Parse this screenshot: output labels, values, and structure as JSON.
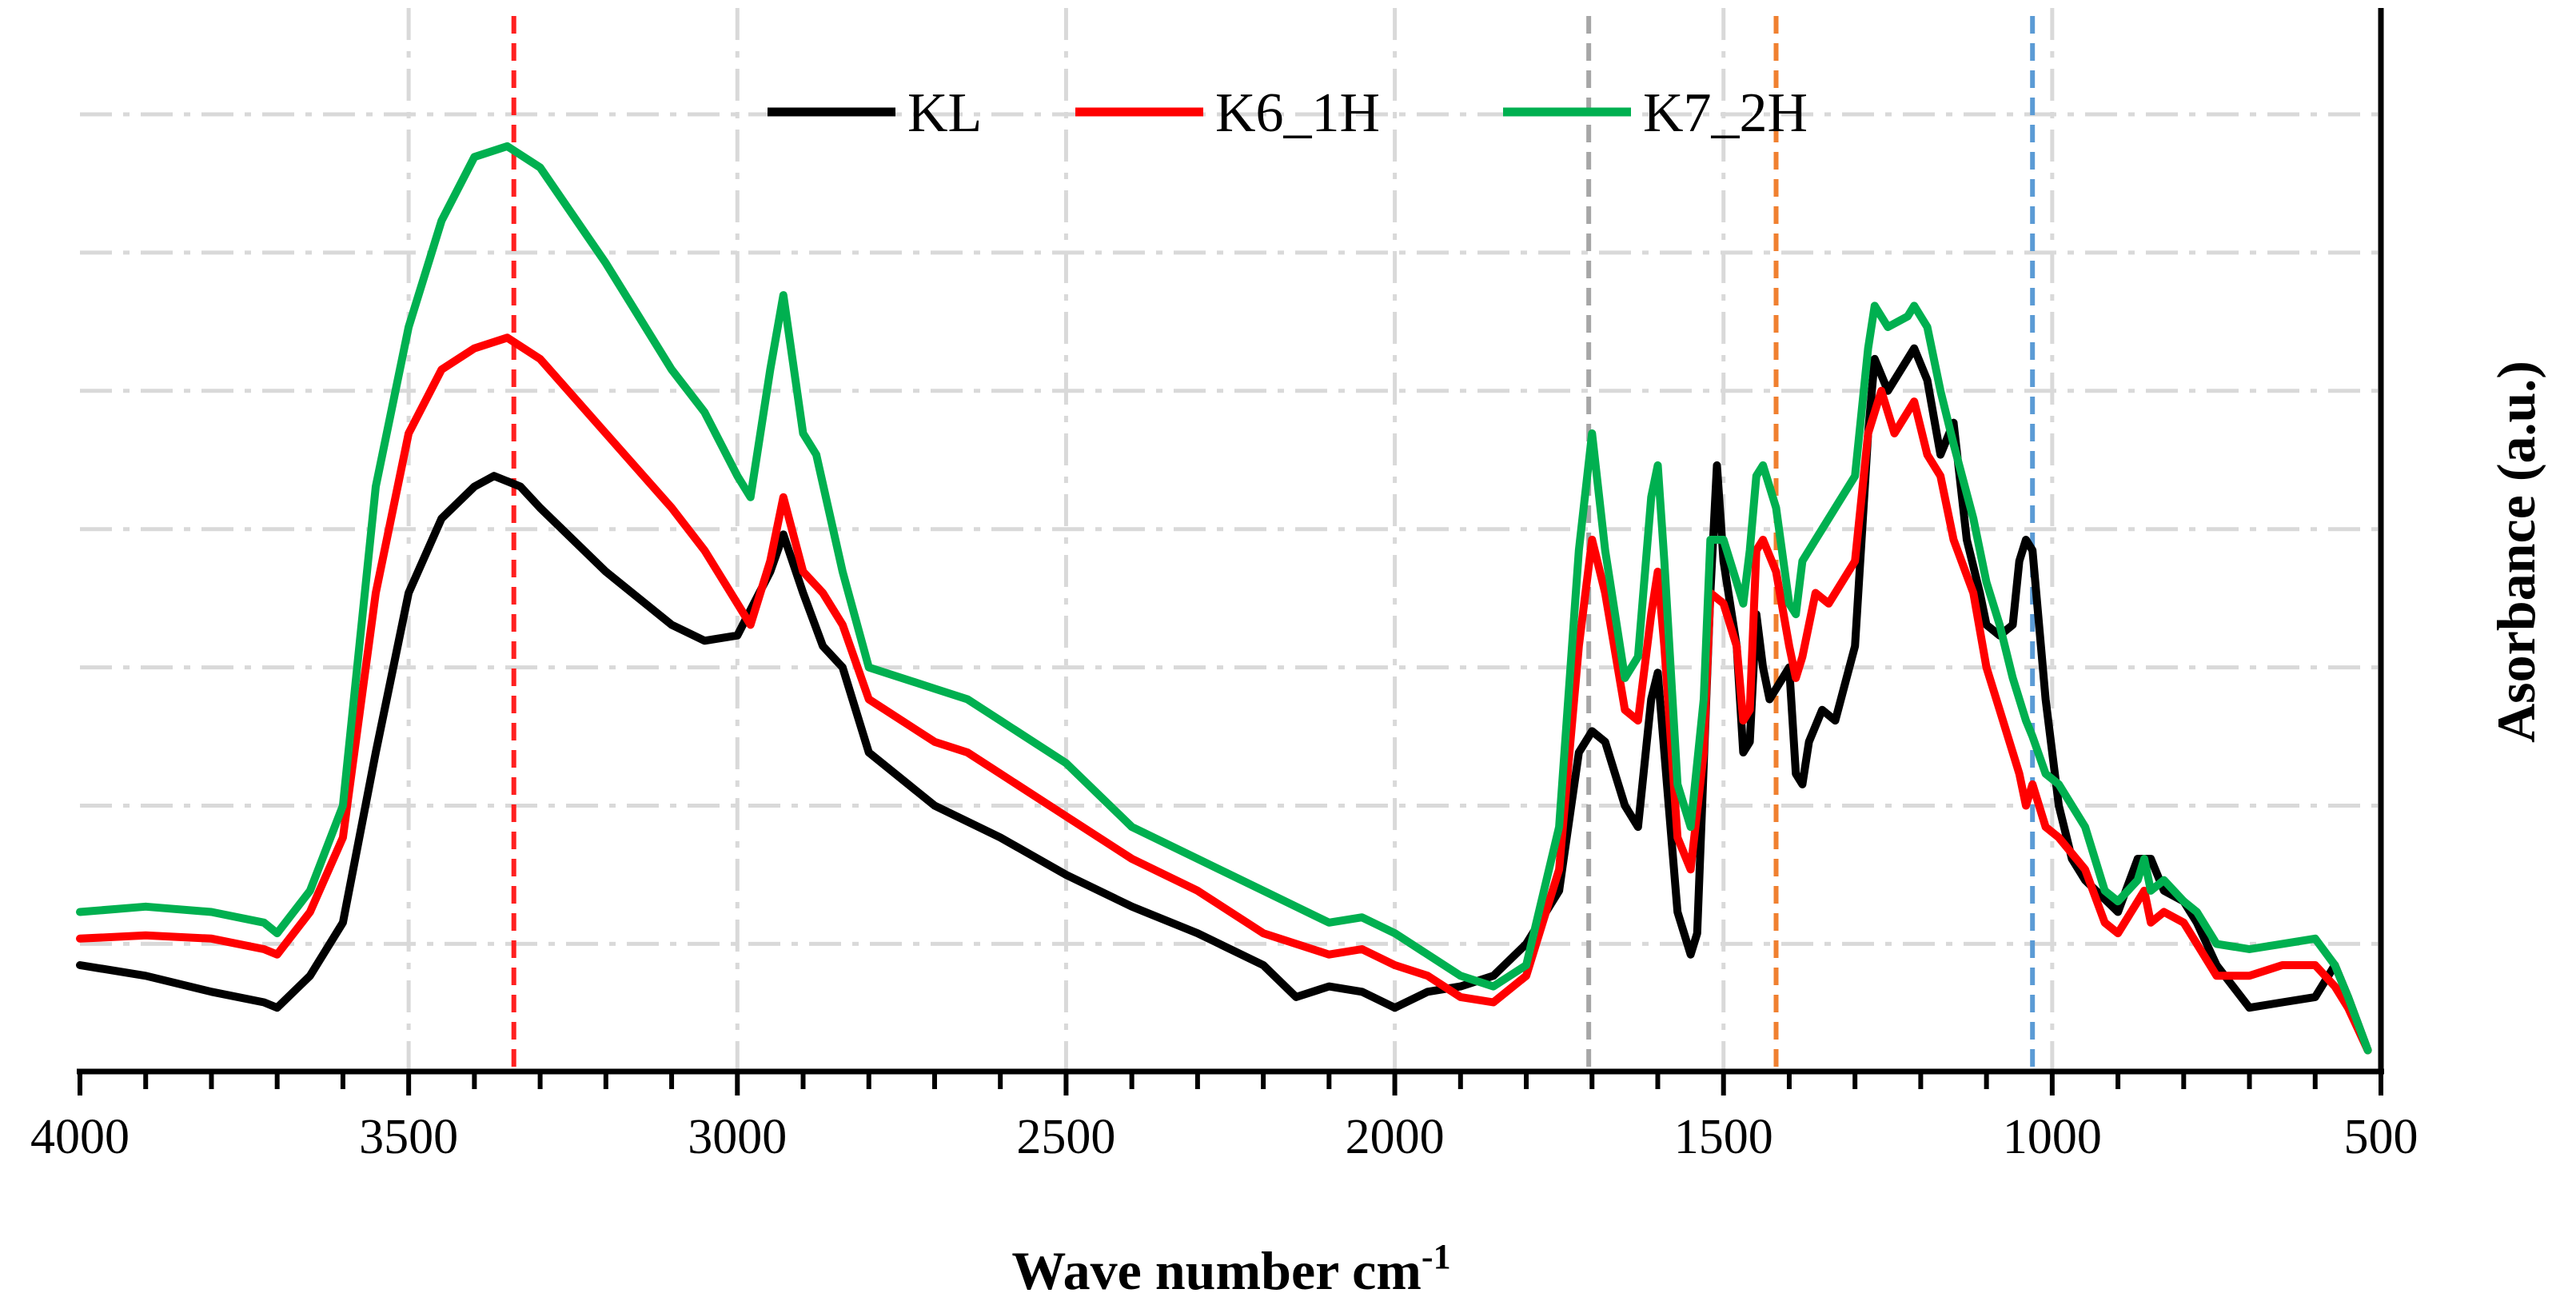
{
  "chart_data": {
    "type": "line",
    "title": "",
    "xlabel": "Wave number cm",
    "xlabel_superscript": "-1",
    "ylabel": "Asorbance (a.u.)",
    "xlim": [
      4000,
      500
    ],
    "ylim": [
      0,
      1.0
    ],
    "x_ticks": [
      4000,
      3500,
      3000,
      2500,
      2000,
      1500,
      1000,
      500
    ],
    "x_tick_labels": [
      "4000",
      "3500",
      "3000",
      "2500",
      "2000",
      "1500",
      "1000",
      "500"
    ],
    "y_gridlines": [
      0.12,
      0.25,
      0.38,
      0.51,
      0.64,
      0.77,
      0.9
    ],
    "grid": true,
    "legend_position": "top-center",
    "reference_lines": [
      {
        "x": 3340,
        "color": "#ff2020"
      },
      {
        "x": 1705,
        "color": "#a6a6a6"
      },
      {
        "x": 1420,
        "color": "#f08030"
      },
      {
        "x": 1030,
        "color": "#5b9bd5"
      }
    ],
    "series": [
      {
        "name": "KL",
        "color": "#000000",
        "points": [
          [
            4000,
            0.1
          ],
          [
            3900,
            0.09
          ],
          [
            3800,
            0.075
          ],
          [
            3720,
            0.065
          ],
          [
            3700,
            0.06
          ],
          [
            3650,
            0.09
          ],
          [
            3600,
            0.14
          ],
          [
            3550,
            0.3
          ],
          [
            3500,
            0.45
          ],
          [
            3450,
            0.52
          ],
          [
            3400,
            0.55
          ],
          [
            3370,
            0.56
          ],
          [
            3330,
            0.55
          ],
          [
            3300,
            0.53
          ],
          [
            3200,
            0.47
          ],
          [
            3100,
            0.42
          ],
          [
            3050,
            0.405
          ],
          [
            3000,
            0.41
          ],
          [
            2950,
            0.47
          ],
          [
            2930,
            0.505
          ],
          [
            2900,
            0.45
          ],
          [
            2870,
            0.4
          ],
          [
            2840,
            0.38
          ],
          [
            2800,
            0.3
          ],
          [
            2700,
            0.25
          ],
          [
            2600,
            0.22
          ],
          [
            2500,
            0.185
          ],
          [
            2400,
            0.155
          ],
          [
            2300,
            0.13
          ],
          [
            2200,
            0.1
          ],
          [
            2150,
            0.07
          ],
          [
            2100,
            0.08
          ],
          [
            2050,
            0.075
          ],
          [
            2000,
            0.06
          ],
          [
            1950,
            0.075
          ],
          [
            1900,
            0.08
          ],
          [
            1850,
            0.09
          ],
          [
            1800,
            0.12
          ],
          [
            1750,
            0.17
          ],
          [
            1720,
            0.3
          ],
          [
            1700,
            0.32
          ],
          [
            1680,
            0.31
          ],
          [
            1650,
            0.25
          ],
          [
            1630,
            0.23
          ],
          [
            1610,
            0.35
          ],
          [
            1600,
            0.375
          ],
          [
            1590,
            0.3
          ],
          [
            1570,
            0.15
          ],
          [
            1550,
            0.11
          ],
          [
            1540,
            0.13
          ],
          [
            1520,
            0.45
          ],
          [
            1510,
            0.57
          ],
          [
            1500,
            0.48
          ],
          [
            1480,
            0.4
          ],
          [
            1470,
            0.3
          ],
          [
            1460,
            0.31
          ],
          [
            1450,
            0.43
          ],
          [
            1440,
            0.38
          ],
          [
            1430,
            0.35
          ],
          [
            1420,
            0.36
          ],
          [
            1400,
            0.38
          ],
          [
            1390,
            0.28
          ],
          [
            1380,
            0.27
          ],
          [
            1370,
            0.31
          ],
          [
            1350,
            0.34
          ],
          [
            1330,
            0.33
          ],
          [
            1300,
            0.4
          ],
          [
            1280,
            0.6
          ],
          [
            1270,
            0.67
          ],
          [
            1250,
            0.64
          ],
          [
            1220,
            0.67
          ],
          [
            1210,
            0.68
          ],
          [
            1190,
            0.65
          ],
          [
            1170,
            0.58
          ],
          [
            1150,
            0.61
          ],
          [
            1130,
            0.5
          ],
          [
            1110,
            0.45
          ],
          [
            1100,
            0.42
          ],
          [
            1080,
            0.41
          ],
          [
            1060,
            0.42
          ],
          [
            1050,
            0.48
          ],
          [
            1040,
            0.5
          ],
          [
            1030,
            0.49
          ],
          [
            1010,
            0.35
          ],
          [
            990,
            0.25
          ],
          [
            970,
            0.2
          ],
          [
            950,
            0.18
          ],
          [
            900,
            0.15
          ],
          [
            870,
            0.2
          ],
          [
            850,
            0.2
          ],
          [
            830,
            0.17
          ],
          [
            800,
            0.16
          ],
          [
            780,
            0.14
          ],
          [
            750,
            0.1
          ],
          [
            700,
            0.06
          ],
          [
            650,
            0.065
          ],
          [
            600,
            0.07
          ],
          [
            570,
            0.1
          ],
          [
            550,
            0.07
          ],
          [
            520,
            0.02
          ]
        ]
      },
      {
        "name": "K6_1H",
        "color": "#ff0000",
        "points": [
          [
            4000,
            0.125
          ],
          [
            3900,
            0.128
          ],
          [
            3800,
            0.125
          ],
          [
            3720,
            0.115
          ],
          [
            3700,
            0.11
          ],
          [
            3650,
            0.15
          ],
          [
            3600,
            0.22
          ],
          [
            3550,
            0.45
          ],
          [
            3500,
            0.6
          ],
          [
            3450,
            0.66
          ],
          [
            3400,
            0.68
          ],
          [
            3350,
            0.69
          ],
          [
            3300,
            0.67
          ],
          [
            3200,
            0.6
          ],
          [
            3100,
            0.53
          ],
          [
            3050,
            0.49
          ],
          [
            3000,
            0.44
          ],
          [
            2980,
            0.42
          ],
          [
            2950,
            0.48
          ],
          [
            2930,
            0.54
          ],
          [
            2900,
            0.47
          ],
          [
            2870,
            0.45
          ],
          [
            2840,
            0.42
          ],
          [
            2800,
            0.35
          ],
          [
            2700,
            0.31
          ],
          [
            2650,
            0.3
          ],
          [
            2600,
            0.28
          ],
          [
            2500,
            0.24
          ],
          [
            2400,
            0.2
          ],
          [
            2300,
            0.17
          ],
          [
            2200,
            0.13
          ],
          [
            2100,
            0.11
          ],
          [
            2050,
            0.115
          ],
          [
            2000,
            0.1
          ],
          [
            1950,
            0.09
          ],
          [
            1900,
            0.07
          ],
          [
            1850,
            0.065
          ],
          [
            1800,
            0.09
          ],
          [
            1750,
            0.19
          ],
          [
            1720,
            0.4
          ],
          [
            1700,
            0.5
          ],
          [
            1680,
            0.45
          ],
          [
            1650,
            0.34
          ],
          [
            1630,
            0.33
          ],
          [
            1610,
            0.43
          ],
          [
            1600,
            0.47
          ],
          [
            1590,
            0.4
          ],
          [
            1570,
            0.22
          ],
          [
            1550,
            0.19
          ],
          [
            1530,
            0.3
          ],
          [
            1520,
            0.45
          ],
          [
            1500,
            0.44
          ],
          [
            1480,
            0.4
          ],
          [
            1470,
            0.33
          ],
          [
            1460,
            0.34
          ],
          [
            1450,
            0.49
          ],
          [
            1440,
            0.5
          ],
          [
            1420,
            0.47
          ],
          [
            1400,
            0.4
          ],
          [
            1390,
            0.37
          ],
          [
            1380,
            0.39
          ],
          [
            1360,
            0.45
          ],
          [
            1340,
            0.44
          ],
          [
            1300,
            0.48
          ],
          [
            1280,
            0.6
          ],
          [
            1260,
            0.64
          ],
          [
            1240,
            0.6
          ],
          [
            1220,
            0.62
          ],
          [
            1210,
            0.63
          ],
          [
            1190,
            0.58
          ],
          [
            1170,
            0.56
          ],
          [
            1150,
            0.5
          ],
          [
            1120,
            0.45
          ],
          [
            1100,
            0.38
          ],
          [
            1080,
            0.34
          ],
          [
            1060,
            0.3
          ],
          [
            1050,
            0.28
          ],
          [
            1040,
            0.25
          ],
          [
            1030,
            0.27
          ],
          [
            1010,
            0.23
          ],
          [
            990,
            0.22
          ],
          [
            950,
            0.19
          ],
          [
            920,
            0.14
          ],
          [
            900,
            0.13
          ],
          [
            870,
            0.16
          ],
          [
            860,
            0.17
          ],
          [
            850,
            0.14
          ],
          [
            830,
            0.15
          ],
          [
            800,
            0.14
          ],
          [
            780,
            0.12
          ],
          [
            750,
            0.09
          ],
          [
            700,
            0.09
          ],
          [
            650,
            0.1
          ],
          [
            600,
            0.1
          ],
          [
            570,
            0.08
          ],
          [
            550,
            0.06
          ],
          [
            520,
            0.02
          ]
        ]
      },
      {
        "name": "K7_2H",
        "color": "#00b050",
        "points": [
          [
            4000,
            0.15
          ],
          [
            3900,
            0.155
          ],
          [
            3800,
            0.15
          ],
          [
            3720,
            0.14
          ],
          [
            3700,
            0.13
          ],
          [
            3650,
            0.17
          ],
          [
            3600,
            0.25
          ],
          [
            3550,
            0.55
          ],
          [
            3500,
            0.7
          ],
          [
            3450,
            0.8
          ],
          [
            3400,
            0.86
          ],
          [
            3350,
            0.87
          ],
          [
            3300,
            0.85
          ],
          [
            3200,
            0.76
          ],
          [
            3100,
            0.66
          ],
          [
            3050,
            0.62
          ],
          [
            3000,
            0.56
          ],
          [
            2980,
            0.54
          ],
          [
            2950,
            0.66
          ],
          [
            2930,
            0.73
          ],
          [
            2900,
            0.6
          ],
          [
            2880,
            0.58
          ],
          [
            2840,
            0.47
          ],
          [
            2800,
            0.38
          ],
          [
            2700,
            0.36
          ],
          [
            2650,
            0.35
          ],
          [
            2600,
            0.33
          ],
          [
            2500,
            0.29
          ],
          [
            2400,
            0.23
          ],
          [
            2300,
            0.2
          ],
          [
            2200,
            0.17
          ],
          [
            2100,
            0.14
          ],
          [
            2050,
            0.145
          ],
          [
            2000,
            0.13
          ],
          [
            1950,
            0.11
          ],
          [
            1900,
            0.09
          ],
          [
            1850,
            0.08
          ],
          [
            1800,
            0.1
          ],
          [
            1750,
            0.23
          ],
          [
            1720,
            0.49
          ],
          [
            1700,
            0.6
          ],
          [
            1680,
            0.49
          ],
          [
            1650,
            0.37
          ],
          [
            1630,
            0.39
          ],
          [
            1610,
            0.54
          ],
          [
            1600,
            0.57
          ],
          [
            1590,
            0.48
          ],
          [
            1570,
            0.27
          ],
          [
            1550,
            0.23
          ],
          [
            1530,
            0.35
          ],
          [
            1520,
            0.5
          ],
          [
            1500,
            0.5
          ],
          [
            1480,
            0.46
          ],
          [
            1470,
            0.44
          ],
          [
            1460,
            0.49
          ],
          [
            1450,
            0.56
          ],
          [
            1440,
            0.57
          ],
          [
            1420,
            0.53
          ],
          [
            1400,
            0.44
          ],
          [
            1390,
            0.43
          ],
          [
            1380,
            0.48
          ],
          [
            1360,
            0.5
          ],
          [
            1330,
            0.53
          ],
          [
            1300,
            0.56
          ],
          [
            1280,
            0.68
          ],
          [
            1270,
            0.72
          ],
          [
            1250,
            0.7
          ],
          [
            1220,
            0.71
          ],
          [
            1210,
            0.72
          ],
          [
            1190,
            0.7
          ],
          [
            1170,
            0.64
          ],
          [
            1150,
            0.59
          ],
          [
            1120,
            0.52
          ],
          [
            1100,
            0.46
          ],
          [
            1080,
            0.42
          ],
          [
            1060,
            0.37
          ],
          [
            1040,
            0.33
          ],
          [
            1030,
            0.315
          ],
          [
            1010,
            0.28
          ],
          [
            990,
            0.27
          ],
          [
            950,
            0.23
          ],
          [
            920,
            0.17
          ],
          [
            900,
            0.16
          ],
          [
            870,
            0.18
          ],
          [
            860,
            0.2
          ],
          [
            850,
            0.17
          ],
          [
            830,
            0.18
          ],
          [
            800,
            0.16
          ],
          [
            780,
            0.15
          ],
          [
            750,
            0.12
          ],
          [
            700,
            0.115
          ],
          [
            650,
            0.12
          ],
          [
            600,
            0.125
          ],
          [
            570,
            0.1
          ],
          [
            550,
            0.07
          ],
          [
            520,
            0.02
          ]
        ]
      }
    ]
  }
}
